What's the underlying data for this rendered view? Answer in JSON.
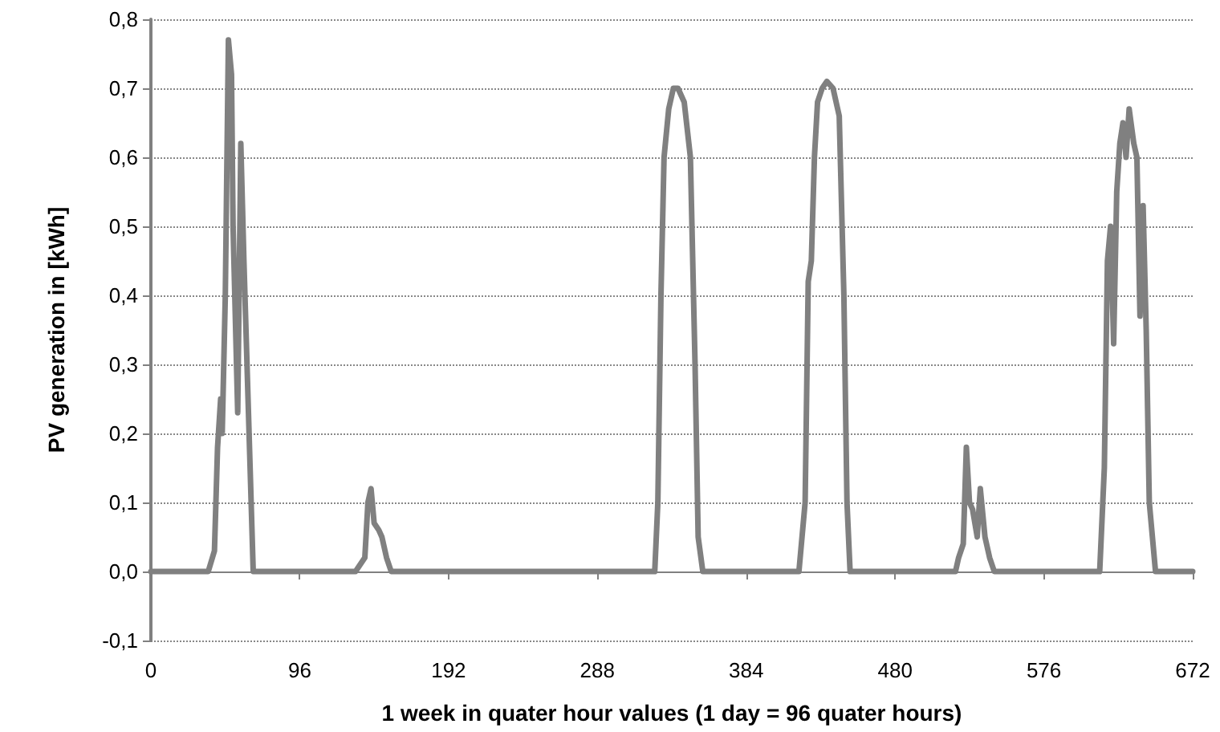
{
  "chart_data": {
    "type": "line",
    "xlabel": "1 week in quater hour values (1 day = 96 quater hours)",
    "ylabel": "PV generation in [kWh]",
    "series": [
      {
        "color": "#808080",
        "x": [
          0,
          37,
          41,
          43,
          45,
          46,
          48,
          50,
          52,
          53,
          56,
          58,
          60,
          62,
          66,
          132,
          138,
          140,
          142,
          144,
          147,
          149,
          152,
          155,
          325,
          327,
          329,
          331,
          334,
          337,
          340,
          344,
          348,
          351,
          353,
          356,
          418,
          422,
          424,
          426,
          428,
          430,
          433,
          436,
          440,
          444,
          447,
          449,
          451,
          519,
          521,
          524,
          526,
          528,
          530,
          533,
          535,
          538,
          541,
          544,
          612,
          615,
          617,
          619,
          621,
          623,
          625,
          627,
          629,
          631,
          634,
          636,
          638,
          640,
          642,
          644,
          648,
          672
        ],
        "values": [
          0,
          0,
          0.03,
          0.18,
          0.25,
          0.2,
          0.4,
          0.77,
          0.72,
          0.5,
          0.23,
          0.62,
          0.45,
          0.3,
          0,
          0,
          0.02,
          0.1,
          0.12,
          0.07,
          0.06,
          0.05,
          0.02,
          0,
          0,
          0.1,
          0.4,
          0.6,
          0.67,
          0.7,
          0.7,
          0.68,
          0.6,
          0.3,
          0.05,
          0,
          0,
          0.1,
          0.42,
          0.45,
          0.6,
          0.68,
          0.7,
          0.71,
          0.7,
          0.66,
          0.4,
          0.1,
          0,
          0,
          0.02,
          0.04,
          0.18,
          0.1,
          0.09,
          0.05,
          0.12,
          0.05,
          0.02,
          0,
          0,
          0.15,
          0.45,
          0.5,
          0.33,
          0.55,
          0.62,
          0.65,
          0.6,
          0.67,
          0.62,
          0.6,
          0.37,
          0.53,
          0.35,
          0.1,
          0,
          0
        ]
      }
    ],
    "xlim": [
      0,
      672
    ],
    "xticks": [
      0,
      96,
      192,
      288,
      384,
      480,
      576,
      672
    ],
    "ylim": [
      -0.1,
      0.8
    ],
    "yticks": [
      {
        "value": -0.1,
        "label": "-0,1"
      },
      {
        "value": 0,
        "label": "0,0"
      },
      {
        "value": 0.1,
        "label": "0,1"
      },
      {
        "value": 0.2,
        "label": "0,2"
      },
      {
        "value": 0.3,
        "label": "0,3"
      },
      {
        "value": 0.4,
        "label": "0,4"
      },
      {
        "value": 0.5,
        "label": "0,5"
      },
      {
        "value": 0.6,
        "label": "0,6"
      },
      {
        "value": 0.7,
        "label": "0,7"
      },
      {
        "value": 0.8,
        "label": "0,8"
      }
    ],
    "grid": "y",
    "marker": "none",
    "line_style": "solid"
  }
}
